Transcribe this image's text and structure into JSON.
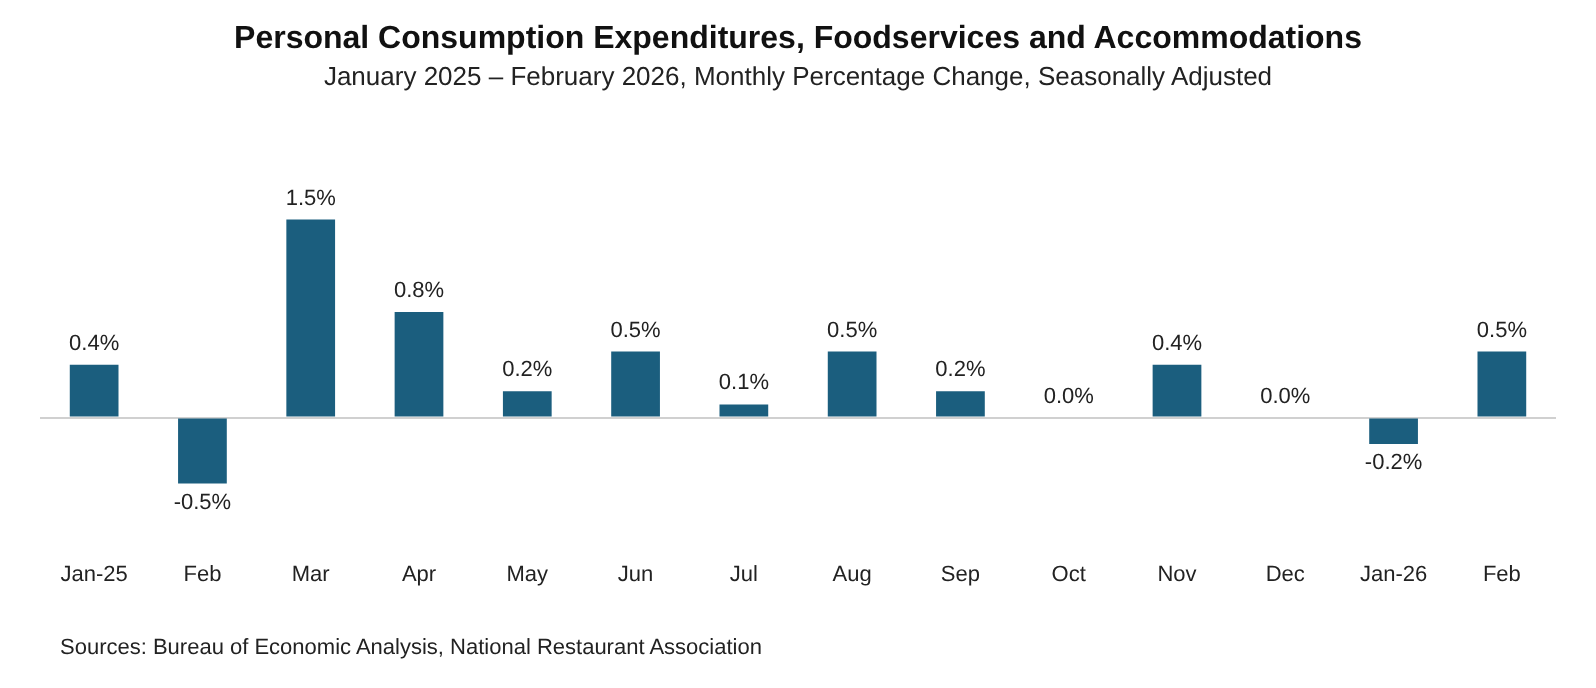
{
  "chart_data": {
    "type": "bar",
    "title": "Personal Consumption Expenditures, Foodservices and Accommodations",
    "subtitle": "January 2025 – February 2026, Monthly Percentage Change, Seasonally Adjusted",
    "categories": [
      "Jan-25",
      "Feb",
      "Mar",
      "Apr",
      "May",
      "Jun",
      "Jul",
      "Aug",
      "Sep",
      "Oct",
      "Nov",
      "Dec",
      "Jan-26",
      "Feb"
    ],
    "values": [
      0.4,
      -0.5,
      1.5,
      0.8,
      0.2,
      0.5,
      0.1,
      0.5,
      0.2,
      0.0,
      0.4,
      0.0,
      -0.2,
      0.5
    ],
    "value_labels": [
      "0.4%",
      "-0.5%",
      "1.5%",
      "0.8%",
      "0.2%",
      "0.5%",
      "0.1%",
      "0.5%",
      "0.2%",
      "0.0%",
      "0.4%",
      "0.0%",
      "-0.2%",
      "0.5%"
    ],
    "color": "#1b5e7e",
    "grid": false,
    "legend": false,
    "annotations": [
      "Sources: Bureau of Economic Analysis, National Restaurant Association"
    ]
  }
}
